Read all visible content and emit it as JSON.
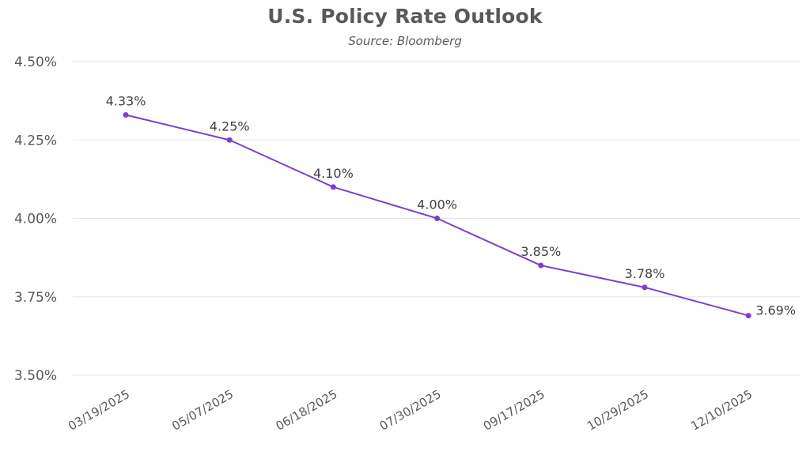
{
  "chart_data": {
    "type": "line",
    "title": "U.S. Policy Rate Outlook",
    "subtitle": "Source: Bloomberg",
    "categories": [
      "03/19/2025",
      "05/07/2025",
      "06/18/2025",
      "07/30/2025",
      "09/17/2025",
      "10/29/2025",
      "12/10/2025"
    ],
    "series": [
      {
        "values": [
          4.33,
          4.25,
          4.1,
          4.0,
          3.85,
          3.78,
          3.69
        ],
        "data_labels": [
          "4.33%",
          "4.25%",
          "4.10%",
          "4.00%",
          "3.85%",
          "3.78%",
          "3.69%"
        ],
        "color": "#7b3fd1"
      }
    ],
    "ylim": [
      3.5,
      4.5
    ],
    "yticks": [
      4.5,
      4.25,
      4.0,
      3.75,
      3.5
    ],
    "ytick_labels": [
      "4.50%",
      "4.25%",
      "4.00%",
      "3.75%",
      "3.50%"
    ],
    "xlabel": "",
    "ylabel": "",
    "grid": true,
    "legend": "none",
    "gridline_color": "#e6e6e6",
    "text_color": "#595959"
  }
}
